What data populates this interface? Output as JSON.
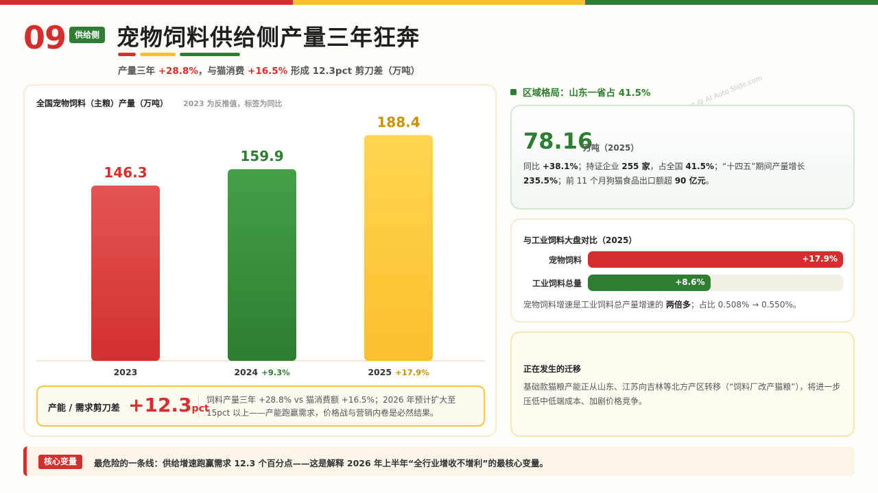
{
  "colors": {
    "red": "#d32f2f",
    "green": "#2e7d32",
    "yellow": "#fbbc2a"
  },
  "header": {
    "section_number": "09",
    "section_tag": "供给侧",
    "title": "宠物饲料供给侧产量三年狂奔",
    "subtitle": {
      "p1": "产量三年 ",
      "v1": "+28.8%",
      "p2": "，与猫消费 ",
      "v2": "+16.5%",
      "p3": " 形成 12.3pct 剪刀差（万吨）"
    }
  },
  "chart_data": {
    "type": "bar",
    "title": "全国宠物饲料（主粮）产量（万吨）",
    "note": "2023 为反推值，标签为同比",
    "categories": [
      "2023",
      "2024",
      "2025"
    ],
    "values": [
      146.3,
      159.9,
      188.4
    ],
    "value_labels": [
      "146.3",
      "159.9",
      "188.4"
    ],
    "yoy_labels": [
      "",
      "+9.3%",
      "+17.9%"
    ],
    "ylim": [
      0,
      200
    ],
    "grid": false
  },
  "gap": {
    "label": "产能 / 需求剪刀差",
    "value": "+12.3",
    "unit": "pct",
    "text": "饲料产量三年 +28.8% vs 猫消费额 +16.5%；2026 年预计扩大至 15pct 以上——产能跑赢需求，价格战与营销内卷是必然结果。"
  },
  "region": {
    "heading": "区域格局：山东一省占 41.5%",
    "watermark": "Report @ AI Auto Slide.com",
    "big_value": "78.16",
    "unit": "万吨（2025）",
    "desc": {
      "t1": "同比 ",
      "b1": "+38.1%",
      "t2": "；持证企业 ",
      "b2": "255 家",
      "t3": "，占全国 ",
      "b3": "41.5%",
      "t4": "；“十四五”期间产量增长 ",
      "b4": "235.5%",
      "t5": "；前 11 个月狗猫食品出口额超 ",
      "b5": "90 亿元",
      "t6": "。"
    }
  },
  "comparison": {
    "title": "与工业饲料大盘对比（2025）",
    "rows": [
      {
        "label": "宠物饲料",
        "value": "+17.9%",
        "fill_fraction": 1.0
      },
      {
        "label": "工业饲料总量",
        "value": "+8.6%",
        "fill_fraction": 0.48
      }
    ],
    "note": {
      "t1": "宠物饲料增速是工业饲料总产量增速的 ",
      "b1": "两倍多",
      "t2": "；占比 0.508% → 0.550%。"
    }
  },
  "migration": {
    "title": "正在发生的迁移",
    "text": "基础款猫粮产能正从山东、江苏向吉林等北方产区转移（“饲料厂改产猫粮”），将进一步压低中低端成本、加剧价格竞争。"
  },
  "footer": {
    "tag": "核心变量",
    "text": "最危险的一条线：供给增速跑赢需求 12.3 个百分点——这是解释 2026 年上半年“全行业增收不增利”的最核心变量。"
  }
}
